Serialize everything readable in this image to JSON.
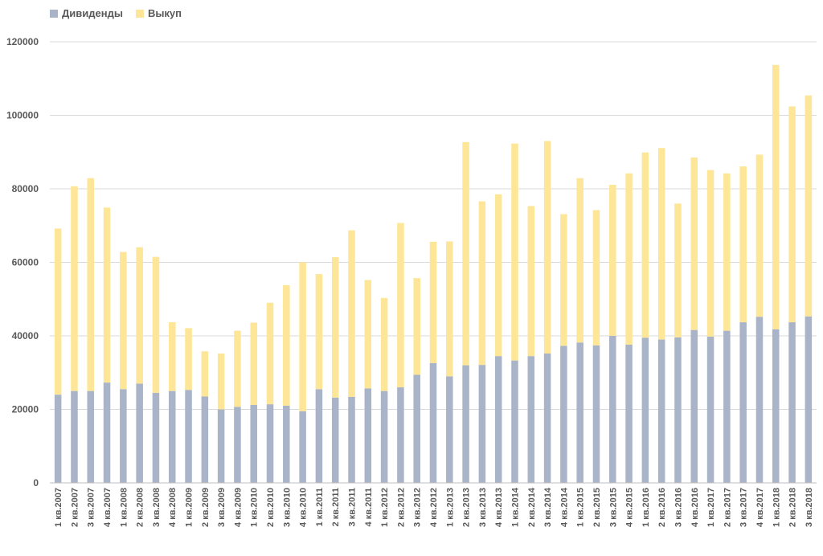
{
  "colors": {
    "dividends": "#aab4c9",
    "buyback": "#fde697",
    "grid": "#d9d9d9",
    "text": "#595959"
  },
  "chart_data": {
    "type": "bar",
    "stacked": true,
    "ylim": [
      0,
      120000
    ],
    "yticks": [
      0,
      20000,
      40000,
      60000,
      80000,
      100000,
      120000
    ],
    "grid": true,
    "legend": "top-left",
    "categories": [
      "1 кв.2007",
      "2 кв.2007",
      "3 кв.2007",
      "4 кв.2007",
      "1 кв.2008",
      "2 кв.2008",
      "3 кв.2008",
      "4 кв.2008",
      "1 кв.2009",
      "2 кв.2009",
      "3 кв.2009",
      "4 кв.2009",
      "1 кв.2010",
      "2 кв.2010",
      "3 кв.2010",
      "4 кв.2010",
      "1 кв.2011",
      "2 кв.2011",
      "3 кв.2011",
      "4 кв.2011",
      "1 кв.2012",
      "2 кв.2012",
      "3 кв.2012",
      "4 кв.2012",
      "1 кв.2013",
      "2 кв.2013",
      "3 кв.2013",
      "4 кв.2013",
      "1 кв.2014",
      "2 кв.2014",
      "3 кв.2014",
      "4 кв.2014",
      "1 кв.2015",
      "2 кв.2015",
      "3 кв.2015",
      "4 кв.2015",
      "1 кв.2016",
      "2 кв.2016",
      "3 кв.2016",
      "4 кв.2016",
      "1 кв.2017",
      "2 кв.2017",
      "3 кв.2017",
      "4 кв.2017",
      "1 кв.2018",
      "2 кв.2018",
      "3 кв.2018"
    ],
    "series": [
      {
        "name": "Дивиденды",
        "values": [
          24000,
          25000,
          25000,
          27300,
          25500,
          27000,
          24500,
          25000,
          25300,
          23500,
          20000,
          20700,
          21200,
          21400,
          21000,
          19500,
          25500,
          23200,
          23400,
          25700,
          25000,
          26000,
          29400,
          32600,
          29000,
          32000,
          32100,
          34500,
          33300,
          34500,
          35200,
          37300,
          38200,
          37400,
          40000,
          37600,
          39500,
          39000,
          39600,
          41600,
          39800,
          41400,
          43700,
          45200,
          41800,
          43700,
          45300
        ]
      },
      {
        "name": "Выкуп",
        "values": [
          45200,
          55700,
          57900,
          47600,
          37300,
          37100,
          37000,
          18700,
          16800,
          12300,
          15200,
          20700,
          22400,
          27600,
          32800,
          40500,
          31300,
          38200,
          45300,
          29500,
          25300,
          44700,
          26300,
          33000,
          36700,
          60700,
          44500,
          44000,
          59000,
          40800,
          57800,
          35800,
          44700,
          36800,
          41100,
          46600,
          50400,
          52100,
          36400,
          46900,
          45300,
          42800,
          42400,
          44100,
          71900,
          58700,
          60100
        ]
      }
    ]
  }
}
